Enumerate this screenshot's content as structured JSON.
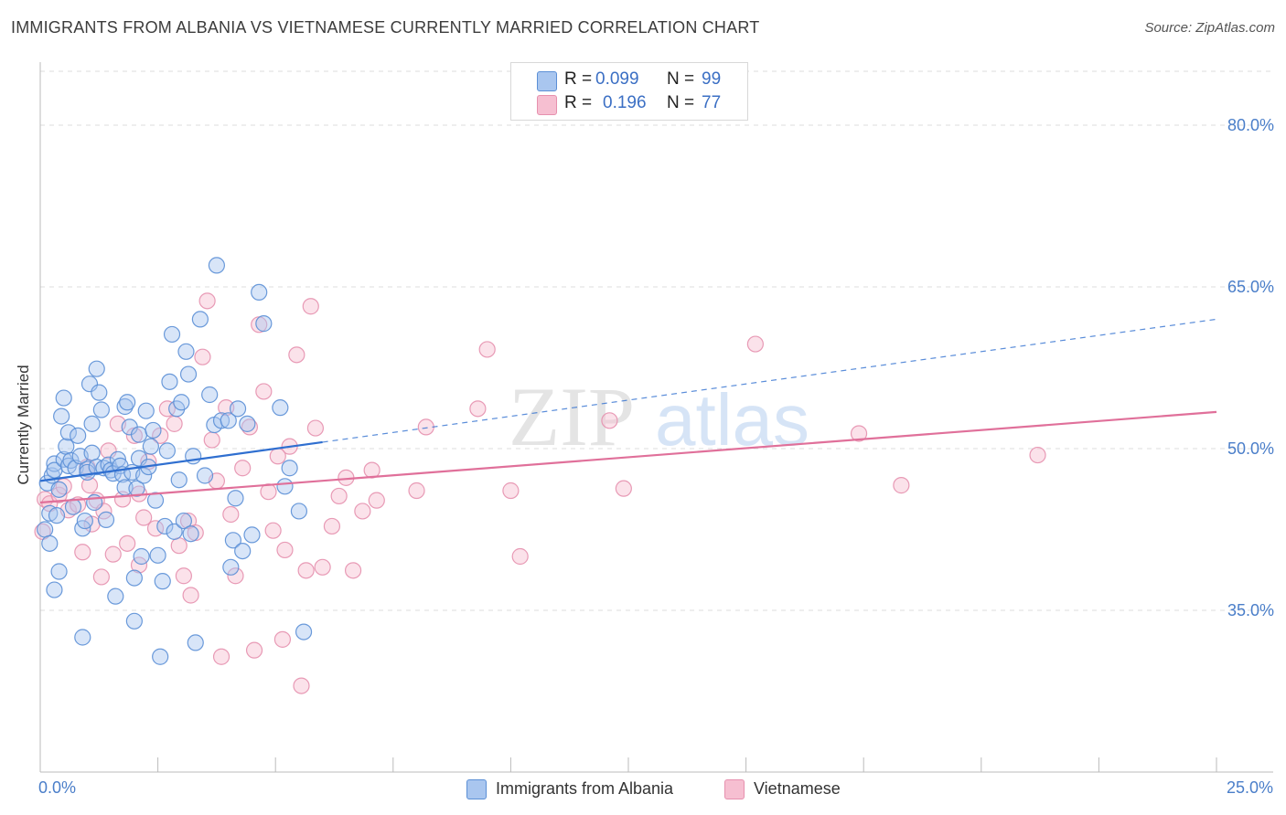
{
  "header": {
    "title": "IMMIGRANTS FROM ALBANIA VS VIETNAMESE CURRENTLY MARRIED CORRELATION CHART",
    "source": "Source: ZipAtlas.com"
  },
  "legend": {
    "r_label": "R =",
    "n_label": "N =",
    "series": [
      {
        "name": "Immigrants from Albania",
        "r": "0.099",
        "n": "99"
      },
      {
        "name": "Vietnamese",
        "r": "0.196",
        "n": "77"
      }
    ]
  },
  "watermark": {
    "zip": "ZIP",
    "atlas": "atlas"
  },
  "colors": {
    "blue_fill": "#a9c6ef",
    "blue_stroke": "#5b8fd6",
    "blue_line": "#2f6fd0",
    "pink_fill": "#f6bfd1",
    "pink_stroke": "#e690ae",
    "pink_line": "#e0709a",
    "tick_label": "#4a7ec9",
    "grid": "#dddddd"
  },
  "chart_data": {
    "type": "scatter",
    "title": "IMMIGRANTS FROM ALBANIA VS VIETNAMESE CURRENTLY MARRIED CORRELATION CHART",
    "xlabel": "",
    "ylabel": "Currently Married",
    "xlim": [
      0,
      25
    ],
    "ylim": [
      20,
      85
    ],
    "x_tick_labels": [
      "0.0%",
      "25.0%"
    ],
    "y_ticks": [
      35,
      50,
      65,
      80
    ],
    "y_tick_labels": [
      "35.0%",
      "50.0%",
      "65.0%",
      "80.0%"
    ],
    "grid": true,
    "legend_position": "top-center",
    "series": [
      {
        "name": "Immigrants from Albania",
        "r": 0.099,
        "n": 99,
        "trend": {
          "x_start": 0.0,
          "y_start": 47.0,
          "x_solid_end": 6.0,
          "y_solid_end": 50.6,
          "x_end": 25.0,
          "y_end": 62.0
        },
        "points": [
          [
            0.1,
            42.5
          ],
          [
            0.15,
            46.8
          ],
          [
            0.2,
            41.2
          ],
          [
            0.2,
            44.0
          ],
          [
            0.25,
            47.5
          ],
          [
            0.3,
            48.6
          ],
          [
            0.3,
            48.0
          ],
          [
            0.35,
            43.8
          ],
          [
            0.4,
            38.6
          ],
          [
            0.4,
            46.2
          ],
          [
            0.45,
            53.0
          ],
          [
            0.5,
            49.0
          ],
          [
            0.55,
            50.2
          ],
          [
            0.6,
            51.5
          ],
          [
            0.6,
            48.4
          ],
          [
            0.65,
            48.9
          ],
          [
            0.7,
            44.6
          ],
          [
            0.75,
            48.2
          ],
          [
            0.8,
            51.2
          ],
          [
            0.85,
            49.3
          ],
          [
            0.9,
            42.6
          ],
          [
            0.95,
            43.3
          ],
          [
            1.0,
            48.1
          ],
          [
            1.0,
            47.8
          ],
          [
            1.05,
            56.0
          ],
          [
            1.1,
            52.3
          ],
          [
            1.1,
            49.6
          ],
          [
            1.15,
            45.0
          ],
          [
            1.2,
            48.3
          ],
          [
            1.25,
            55.2
          ],
          [
            1.3,
            53.6
          ],
          [
            1.35,
            48.2
          ],
          [
            1.4,
            43.4
          ],
          [
            1.45,
            48.5
          ],
          [
            1.5,
            48.0
          ],
          [
            1.55,
            47.7
          ],
          [
            1.6,
            36.3
          ],
          [
            1.65,
            49.0
          ],
          [
            1.7,
            48.4
          ],
          [
            1.75,
            47.6
          ],
          [
            1.8,
            46.4
          ],
          [
            1.8,
            53.9
          ],
          [
            1.85,
            54.3
          ],
          [
            1.9,
            52.0
          ],
          [
            1.95,
            47.8
          ],
          [
            2.0,
            34.0
          ],
          [
            2.05,
            46.3
          ],
          [
            2.1,
            51.3
          ],
          [
            2.1,
            49.1
          ],
          [
            2.15,
            40.0
          ],
          [
            2.2,
            47.5
          ],
          [
            2.25,
            53.5
          ],
          [
            2.3,
            48.3
          ],
          [
            2.35,
            50.2
          ],
          [
            2.4,
            51.7
          ],
          [
            2.45,
            45.2
          ],
          [
            2.5,
            40.1
          ],
          [
            2.55,
            30.7
          ],
          [
            2.6,
            37.7
          ],
          [
            2.65,
            42.8
          ],
          [
            2.7,
            49.8
          ],
          [
            2.75,
            56.2
          ],
          [
            2.8,
            60.6
          ],
          [
            2.85,
            42.3
          ],
          [
            2.9,
            53.7
          ],
          [
            2.95,
            47.1
          ],
          [
            3.0,
            54.3
          ],
          [
            3.05,
            43.3
          ],
          [
            3.1,
            59.0
          ],
          [
            3.15,
            56.9
          ],
          [
            3.2,
            42.1
          ],
          [
            3.25,
            49.3
          ],
          [
            3.3,
            32.0
          ],
          [
            3.4,
            62.0
          ],
          [
            3.5,
            47.5
          ],
          [
            3.6,
            55.0
          ],
          [
            3.7,
            52.2
          ],
          [
            3.75,
            67.0
          ],
          [
            3.85,
            52.6
          ],
          [
            4.0,
            52.6
          ],
          [
            4.05,
            39.0
          ],
          [
            4.1,
            41.5
          ],
          [
            4.15,
            45.4
          ],
          [
            4.2,
            53.7
          ],
          [
            4.3,
            40.5
          ],
          [
            4.4,
            52.3
          ],
          [
            4.5,
            42.0
          ],
          [
            4.65,
            64.5
          ],
          [
            4.75,
            61.6
          ],
          [
            5.1,
            53.8
          ],
          [
            5.3,
            48.2
          ],
          [
            5.5,
            44.2
          ],
          [
            5.6,
            33.0
          ],
          [
            5.2,
            46.5
          ],
          [
            0.3,
            36.9
          ],
          [
            0.9,
            32.5
          ],
          [
            1.2,
            57.4
          ],
          [
            0.5,
            54.7
          ],
          [
            2.0,
            38.0
          ]
        ]
      },
      {
        "name": "Vietnamese",
        "r": 0.196,
        "n": 77,
        "trend": {
          "x_start": 0.0,
          "y_start": 45.0,
          "x_end": 25.0,
          "y_end": 53.4
        },
        "points": [
          [
            0.05,
            42.3
          ],
          [
            0.1,
            45.3
          ],
          [
            0.2,
            44.9
          ],
          [
            0.4,
            45.7
          ],
          [
            0.5,
            46.5
          ],
          [
            0.6,
            44.3
          ],
          [
            0.8,
            44.8
          ],
          [
            0.9,
            40.4
          ],
          [
            1.0,
            48.3
          ],
          [
            1.05,
            46.6
          ],
          [
            1.1,
            43.0
          ],
          [
            1.2,
            45.2
          ],
          [
            1.3,
            38.1
          ],
          [
            1.35,
            44.2
          ],
          [
            1.45,
            49.8
          ],
          [
            1.55,
            40.2
          ],
          [
            1.65,
            52.3
          ],
          [
            1.75,
            45.3
          ],
          [
            1.85,
            41.2
          ],
          [
            2.0,
            51.2
          ],
          [
            2.1,
            39.2
          ],
          [
            2.2,
            43.6
          ],
          [
            2.3,
            48.8
          ],
          [
            2.45,
            42.6
          ],
          [
            2.55,
            51.2
          ],
          [
            2.7,
            53.7
          ],
          [
            2.85,
            52.3
          ],
          [
            2.95,
            41.0
          ],
          [
            3.05,
            38.2
          ],
          [
            3.15,
            43.3
          ],
          [
            3.3,
            42.2
          ],
          [
            3.45,
            58.5
          ],
          [
            3.55,
            63.7
          ],
          [
            3.65,
            50.8
          ],
          [
            3.75,
            47.0
          ],
          [
            3.85,
            30.7
          ],
          [
            3.95,
            53.8
          ],
          [
            4.05,
            43.9
          ],
          [
            4.15,
            38.2
          ],
          [
            4.3,
            48.2
          ],
          [
            4.45,
            52.0
          ],
          [
            4.55,
            31.3
          ],
          [
            4.65,
            61.5
          ],
          [
            4.75,
            55.3
          ],
          [
            4.85,
            46.0
          ],
          [
            4.95,
            42.4
          ],
          [
            5.05,
            49.3
          ],
          [
            5.15,
            32.3
          ],
          [
            5.3,
            50.2
          ],
          [
            5.45,
            58.7
          ],
          [
            5.55,
            28.0
          ],
          [
            5.65,
            38.7
          ],
          [
            5.75,
            63.2
          ],
          [
            5.85,
            51.9
          ],
          [
            6.0,
            39.0
          ],
          [
            6.2,
            42.8
          ],
          [
            6.35,
            45.6
          ],
          [
            6.5,
            47.3
          ],
          [
            6.65,
            38.7
          ],
          [
            6.85,
            44.2
          ],
          [
            7.05,
            48.0
          ],
          [
            7.15,
            45.2
          ],
          [
            8.0,
            46.1
          ],
          [
            8.2,
            52.0
          ],
          [
            9.3,
            53.7
          ],
          [
            9.5,
            59.2
          ],
          [
            10.0,
            46.1
          ],
          [
            10.2,
            40.0
          ],
          [
            12.1,
            52.6
          ],
          [
            12.4,
            46.3
          ],
          [
            15.2,
            59.7
          ],
          [
            17.4,
            51.4
          ],
          [
            18.3,
            46.6
          ],
          [
            21.2,
            49.4
          ],
          [
            2.1,
            45.8
          ],
          [
            3.2,
            36.4
          ],
          [
            5.2,
            40.6
          ]
        ]
      }
    ]
  }
}
